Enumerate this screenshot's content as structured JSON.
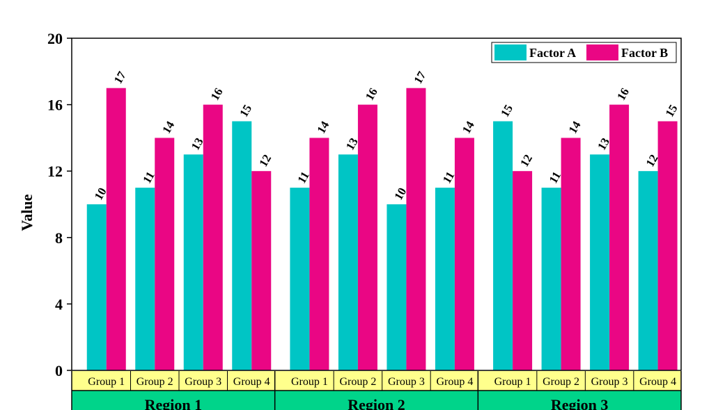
{
  "chart_data": {
    "type": "bar",
    "ylabel": "Value",
    "ylim": [
      0,
      20
    ],
    "yticks": [
      "0",
      "4",
      "8",
      "12",
      "16",
      "20"
    ],
    "regions": [
      {
        "label": "Region 1",
        "groups": [
          "Group 1",
          "Group 2",
          "Group 3",
          "Group 4"
        ]
      },
      {
        "label": "Region 2",
        "groups": [
          "Group 1",
          "Group 2",
          "Group 3",
          "Group 4"
        ]
      },
      {
        "label": "Region 3",
        "groups": [
          "Group 1",
          "Group 2",
          "Group 3",
          "Group 4"
        ]
      }
    ],
    "series": [
      {
        "name": "Factor A",
        "color": "#00c5c5",
        "values": [
          10,
          11,
          13,
          15,
          11,
          13,
          10,
          11,
          15,
          11,
          13,
          12
        ]
      },
      {
        "name": "Factor B",
        "color": "#ea0684",
        "values": [
          17,
          14,
          16,
          12,
          14,
          16,
          17,
          14,
          12,
          14,
          16,
          15
        ]
      }
    ],
    "legend_position": "top-right",
    "grid": false,
    "group_row_color": "#ffff8c",
    "region_row_color": "#00d48a"
  }
}
